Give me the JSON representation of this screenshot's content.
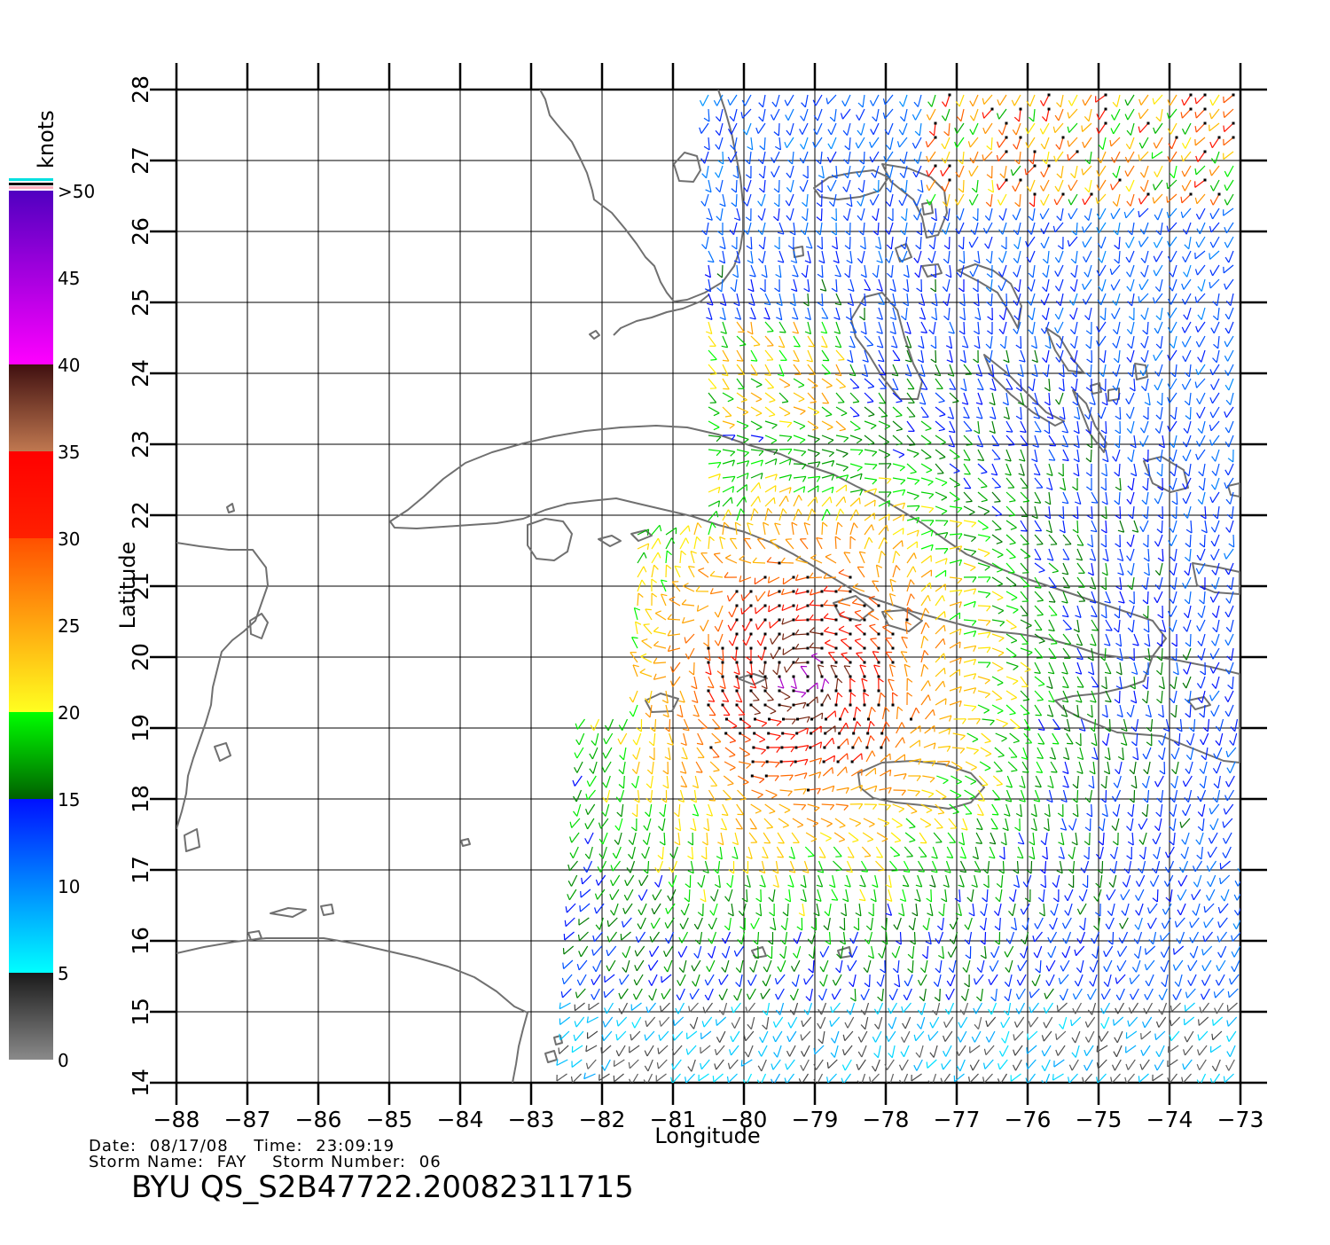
{
  "map": {
    "lon_range": [
      -88,
      -73
    ],
    "lat_range": [
      14,
      28
    ],
    "lon_ticks": [
      -88,
      -87,
      -86,
      -85,
      -84,
      -83,
      -82,
      -81,
      -80,
      -79,
      -78,
      -77,
      -76,
      -75,
      -74,
      -73
    ],
    "lat_ticks": [
      14,
      15,
      16,
      17,
      18,
      19,
      20,
      21,
      22,
      23,
      24,
      25,
      26,
      27,
      28
    ],
    "lon_tick_labels": [
      "−88",
      "−87",
      "−86",
      "−85",
      "−84",
      "−83",
      "−82",
      "−81",
      "−80",
      "−79",
      "−78",
      "−77",
      "−76",
      "−75",
      "−74",
      "−73"
    ],
    "lat_tick_labels": [
      "14",
      "15",
      "16",
      "17",
      "18",
      "19",
      "20",
      "21",
      "22",
      "23",
      "24",
      "25",
      "26",
      "27",
      "28"
    ],
    "xlabel": "Longitude",
    "ylabel": "Latitude",
    "grid": true,
    "coastline_color": "#707070"
  },
  "legend": {
    "units": "knots",
    "bands": [
      {
        "label": "0",
        "from": 0,
        "to": 5,
        "color_bottom": "#8a8a8a",
        "color_top": "#1a1a1a"
      },
      {
        "label": "5",
        "from": 5,
        "to": 15,
        "color_bottom": "#00ffff",
        "color_top": "#0010ff"
      },
      {
        "label": "15",
        "from": 15,
        "to": 20,
        "color_bottom": "#006000",
        "color_top": "#00ff00"
      },
      {
        "label": "20",
        "from": 20,
        "to": 30,
        "color_bottom": "#ffff20",
        "color_top": "#ff5000"
      },
      {
        "label": "30",
        "from": 30,
        "to": 35,
        "color_bottom": "#ff2000",
        "color_top": "#ff0000"
      },
      {
        "label": "35",
        "from": 35,
        "to": 40,
        "color_bottom": "#c07850",
        "color_top": "#401010"
      },
      {
        "label": "40",
        "from": 40,
        "to": 50,
        "color_bottom": "#ff00ff",
        "color_top": "#5000c0"
      }
    ],
    "labels": [
      "0",
      "5",
      "10",
      "15",
      "20",
      "25",
      "30",
      "35",
      "40",
      "45",
      ">50"
    ]
  },
  "info": {
    "date_label": "Date:",
    "date": "08/17/08",
    "time_label": "Time:",
    "time": "23:09:19",
    "storm_name_label": "Storm Name:",
    "storm_name": "FAY",
    "storm_number_label": "Storm Number:",
    "storm_number": "06",
    "file_id": "BYU QS_S2B47722.20082311715"
  },
  "swath": {
    "lon_min": -82.5,
    "lon_max": -73.0,
    "lat_min": 14.0,
    "lat_max": 28.0,
    "storm_center": [
      -79.2,
      19.7
    ]
  }
}
